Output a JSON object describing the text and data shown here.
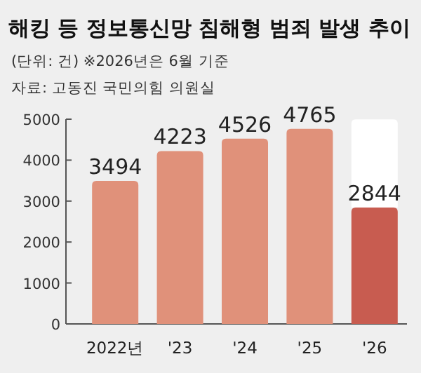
{
  "chart_data": {
    "type": "bar",
    "title": "해킹 등 정보통신망 침해형 범죄 발생 추이",
    "subtitle": "(단위: 건)  ※2026년은 6월 기준",
    "annotations": [
      "자료: 고동진 국민의힘 의원실"
    ],
    "categories": [
      "2022년",
      "'23",
      "'24",
      "'25",
      "'26"
    ],
    "stacked": true,
    "series": [
      {
        "colors": [
          "#e0917a",
          "#e0917a",
          "#e0917a",
          "#e0917a",
          "#c85c50"
        ],
        "values": [
          3494,
          4223,
          4526,
          4765,
          2844
        ],
        "value_labels": [
          "3494",
          "4223",
          "4526",
          "4765",
          "2844"
        ]
      },
      {
        "color": "#ffffff",
        "values": [
          null,
          null,
          null,
          null,
          2150
        ]
      }
    ],
    "ylim": [
      0,
      5000
    ],
    "yticks": [
      0,
      1000,
      2000,
      3000,
      4000,
      5000
    ]
  }
}
